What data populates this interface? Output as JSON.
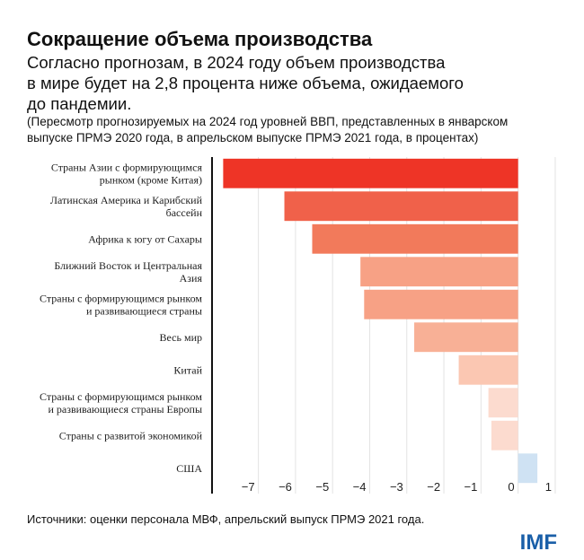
{
  "chart_data": {
    "type": "barh",
    "title": "Сокращение объема производства",
    "subtitle": [
      "Согласно прогнозам, в 2024 году объем производства",
      "в мире будет на 2,8 процента ниже объема, ожидаемого",
      "до пандемии."
    ],
    "note": [
      "(Пересмотр прогнозируемых на 2024 год уровней ВВП, представленных в январском",
      "выпуске ПРМЭ 2020 года, в апрельском выпуске ПРМЭ 2021 года, в процентах)"
    ],
    "categories": [
      [
        "Страны Азии с формирующимся",
        "рынком (кроме Китая)"
      ],
      [
        "Латинская Америка и Карибский",
        "бассейн"
      ],
      [
        "Африка к югу от Сахары"
      ],
      [
        "Ближний Восток и Центральная",
        "Азия"
      ],
      [
        "Страны с формирующимся рынком",
        "и развивающиеся страны"
      ],
      [
        "Весь мир"
      ],
      [
        "Китай"
      ],
      [
        "Страны с формирующимся рынком",
        "и развивающиеся страны Европы"
      ],
      [
        "Страны с развитой экономикой"
      ],
      [
        "США"
      ]
    ],
    "values": [
      -7.95,
      -6.3,
      -5.55,
      -4.25,
      -4.15,
      -2.8,
      -1.6,
      -0.8,
      -0.72,
      0.52
    ],
    "colors": [
      "#ee3426",
      "#f0614a",
      "#f27a5b",
      "#f7a185",
      "#f7a185",
      "#f8b096",
      "#fbc7b2",
      "#fcdbcf",
      "#fcdbcf",
      "#cfe2f3"
    ],
    "xlim": [
      -8.25,
      1.05
    ],
    "xticks": [
      {
        "value": -7,
        "label": "−7"
      },
      {
        "value": -6,
        "label": "−6"
      },
      {
        "value": -5,
        "label": "−5"
      },
      {
        "value": -4,
        "label": "−4"
      },
      {
        "value": -3,
        "label": "−3"
      },
      {
        "value": -2,
        "label": "−2"
      },
      {
        "value": -1,
        "label": "−1"
      },
      0,
      1
    ],
    "grid": true,
    "source": "Источники: оценки персонала МВФ, апрельский выпуск ПРМЭ 2021 года.",
    "logo": "IMF"
  }
}
